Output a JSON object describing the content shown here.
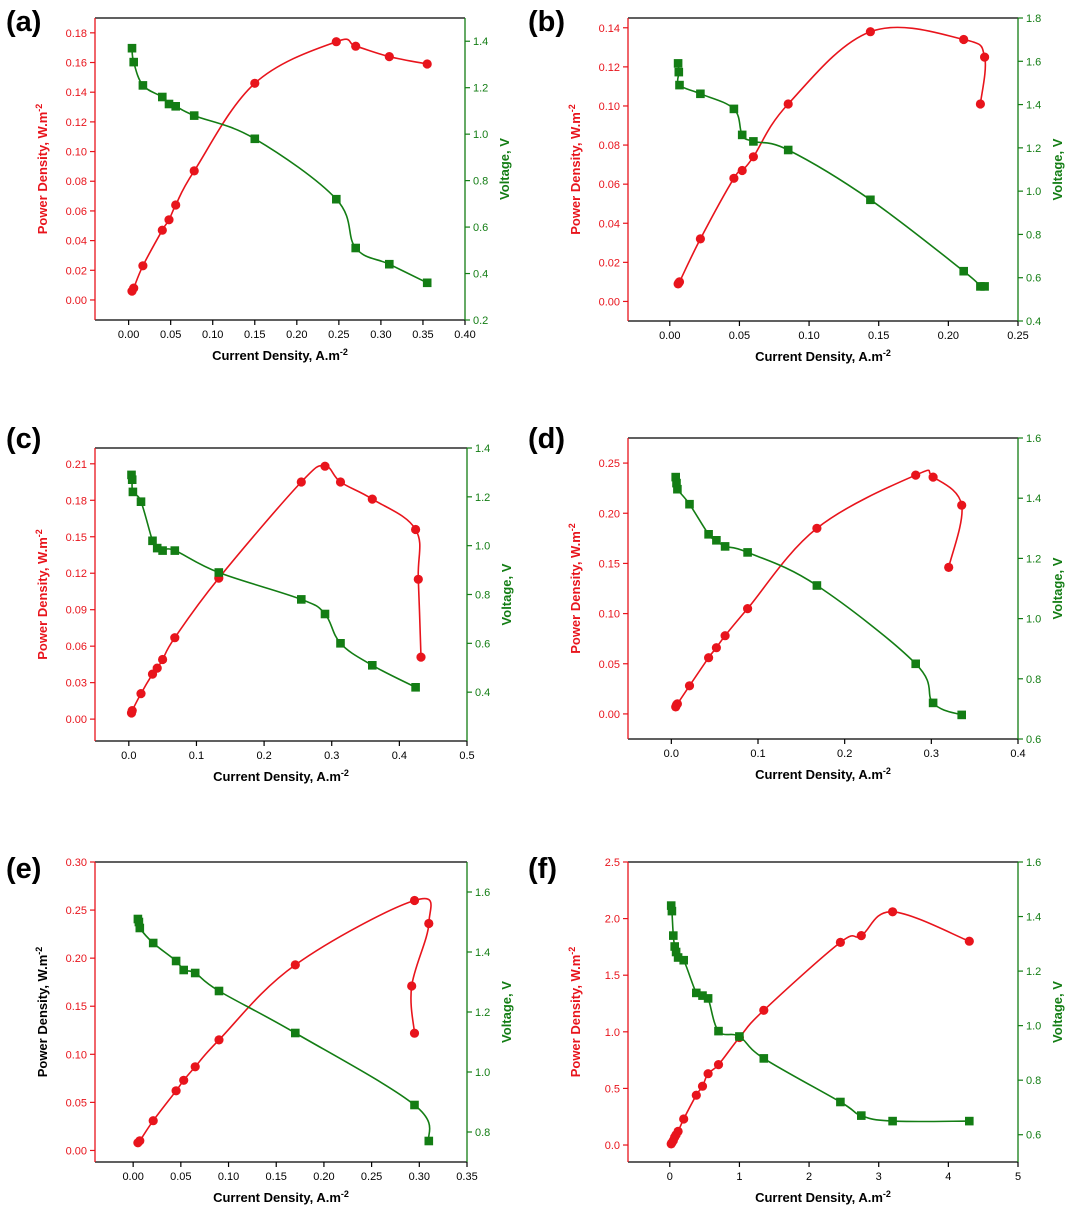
{
  "colors": {
    "power": "#e8141c",
    "voltage": "#137d14",
    "axis": "#000000"
  },
  "chart_data": [
    {
      "type": "line",
      "panel": "(a)",
      "xlabel": "Current Density, A.m",
      "ylabel_left": "Power Density, W.m",
      "ylabel_right": "Voltage, V",
      "left_label_color": "power",
      "xlim": [
        -0.04,
        0.4
      ],
      "ylim_left": [
        -0.0135,
        0.19
      ],
      "ylim_right": [
        0.2,
        1.5
      ],
      "xticks": [
        0.0,
        0.05,
        0.1,
        0.15,
        0.2,
        0.25,
        0.3,
        0.35,
        0.4
      ],
      "xtick_labels": [
        "0.00",
        "0.05",
        "0.10",
        "0.15",
        "0.20",
        "0.25",
        "0.30",
        "0.35",
        "0.40"
      ],
      "yticks_left": [
        0.0,
        0.02,
        0.04,
        0.06,
        0.08,
        0.1,
        0.12,
        0.14,
        0.16,
        0.18
      ],
      "ytick_labels_left": [
        "0.00",
        "0.02",
        "0.04",
        "0.06",
        "0.08",
        "0.10",
        "0.12",
        "0.14",
        "0.16",
        "0.18"
      ],
      "yticks_right": [
        0.2,
        0.4,
        0.6,
        0.8,
        1.0,
        1.2,
        1.4
      ],
      "ytick_labels_right": [
        "0.2",
        "0.4",
        "0.6",
        "0.8",
        "1.0",
        "1.2",
        "1.4"
      ],
      "series": [
        {
          "name": "Power Density",
          "axis": "left",
          "marker": "circle",
          "color": "power",
          "x": [
            0.004,
            0.006,
            0.017,
            0.04,
            0.048,
            0.056,
            0.078,
            0.15,
            0.247,
            0.27,
            0.31,
            0.355
          ],
          "y": [
            0.006,
            0.008,
            0.023,
            0.047,
            0.054,
            0.064,
            0.087,
            0.146,
            0.174,
            0.171,
            0.164,
            0.159
          ]
        },
        {
          "name": "Voltage",
          "axis": "right",
          "marker": "square",
          "color": "voltage",
          "x": [
            0.004,
            0.006,
            0.017,
            0.04,
            0.048,
            0.056,
            0.078,
            0.15,
            0.247,
            0.27,
            0.31,
            0.355
          ],
          "y": [
            1.37,
            1.31,
            1.21,
            1.16,
            1.13,
            1.12,
            1.08,
            0.98,
            0.72,
            0.51,
            0.44,
            0.36
          ]
        }
      ]
    },
    {
      "type": "line",
      "panel": "(b)",
      "xlabel": "Current Density, A.m",
      "ylabel_left": "Power Density, W.m",
      "ylabel_right": "Voltage, V",
      "left_label_color": "power",
      "xlim": [
        -0.03,
        0.25
      ],
      "ylim_left": [
        -0.01,
        0.145
      ],
      "ylim_right": [
        0.4,
        1.8
      ],
      "xticks": [
        0.0,
        0.05,
        0.1,
        0.15,
        0.2,
        0.25
      ],
      "xtick_labels": [
        "0.00",
        "0.05",
        "0.10",
        "0.15",
        "0.20",
        "0.25"
      ],
      "yticks_left": [
        0.0,
        0.02,
        0.04,
        0.06,
        0.08,
        0.1,
        0.12,
        0.14
      ],
      "ytick_labels_left": [
        "0.00",
        "0.02",
        "0.04",
        "0.06",
        "0.08",
        "0.10",
        "0.12",
        "0.14"
      ],
      "yticks_right": [
        0.4,
        0.6,
        0.8,
        1.0,
        1.2,
        1.4,
        1.6,
        1.8
      ],
      "ytick_labels_right": [
        "0.4",
        "0.6",
        "0.8",
        "1.0",
        "1.2",
        "1.4",
        "1.6",
        "1.8"
      ],
      "series": [
        {
          "name": "Power Density",
          "axis": "left",
          "marker": "circle",
          "color": "power",
          "x": [
            0.006,
            0.0065,
            0.007,
            0.022,
            0.046,
            0.052,
            0.06,
            0.085,
            0.144,
            0.211,
            0.226,
            0.223
          ],
          "y": [
            0.009,
            0.0095,
            0.01,
            0.032,
            0.063,
            0.067,
            0.074,
            0.101,
            0.138,
            0.134,
            0.125,
            0.101
          ]
        },
        {
          "name": "Voltage",
          "axis": "right",
          "marker": "square",
          "color": "voltage",
          "x": [
            0.006,
            0.0065,
            0.007,
            0.022,
            0.046,
            0.052,
            0.06,
            0.085,
            0.144,
            0.211,
            0.223,
            0.226
          ],
          "y": [
            1.59,
            1.55,
            1.49,
            1.45,
            1.38,
            1.26,
            1.23,
            1.19,
            0.96,
            0.63,
            0.56,
            0.56
          ]
        }
      ]
    },
    {
      "type": "line",
      "panel": "(c)",
      "xlabel": "Current Density, A.m",
      "ylabel_left": "Power Density, W.m",
      "ylabel_right": "Voltage, V",
      "left_label_color": "power",
      "xlim": [
        -0.05,
        0.5
      ],
      "ylim_left": [
        -0.018,
        0.223
      ],
      "ylim_right": [
        0.2,
        1.4
      ],
      "xticks": [
        0.0,
        0.1,
        0.2,
        0.3,
        0.4,
        0.5
      ],
      "xtick_labels": [
        "0.0",
        "0.1",
        "0.2",
        "0.3",
        "0.4",
        "0.5"
      ],
      "yticks_left": [
        0.0,
        0.03,
        0.06,
        0.09,
        0.12,
        0.15,
        0.18,
        0.21
      ],
      "ytick_labels_left": [
        "0.00",
        "0.03",
        "0.06",
        "0.09",
        "0.12",
        "0.15",
        "0.18",
        "0.21"
      ],
      "yticks_right": [
        0.4,
        0.6,
        0.8,
        1.0,
        1.2,
        1.4
      ],
      "ytick_labels_right": [
        "0.4",
        "0.6",
        "0.8",
        "1.0",
        "1.2",
        "1.4"
      ],
      "series": [
        {
          "name": "Power Density",
          "axis": "left",
          "marker": "circle",
          "color": "power",
          "x": [
            0.004,
            0.005,
            0.018,
            0.035,
            0.042,
            0.05,
            0.068,
            0.133,
            0.255,
            0.29,
            0.313,
            0.36,
            0.424,
            0.428,
            0.432
          ],
          "y": [
            0.005,
            0.007,
            0.021,
            0.037,
            0.042,
            0.049,
            0.067,
            0.116,
            0.195,
            0.208,
            0.195,
            0.181,
            0.156,
            0.115,
            0.051
          ]
        },
        {
          "name": "Voltage",
          "axis": "right",
          "marker": "square",
          "color": "voltage",
          "x": [
            0.004,
            0.005,
            0.006,
            0.018,
            0.035,
            0.042,
            0.05,
            0.068,
            0.133,
            0.255,
            0.29,
            0.313,
            0.36,
            0.424
          ],
          "y": [
            1.29,
            1.27,
            1.22,
            1.18,
            1.02,
            0.99,
            0.98,
            0.98,
            0.89,
            0.78,
            0.72,
            0.6,
            0.51,
            0.42
          ]
        }
      ]
    },
    {
      "type": "line",
      "panel": "(d)",
      "xlabel": "Current Density, A.m",
      "ylabel_left": "Power Density, W.m",
      "ylabel_right": "Voltage, V",
      "left_label_color": "power",
      "xlim": [
        -0.05,
        0.4
      ],
      "ylim_left": [
        -0.025,
        0.275
      ],
      "ylim_right": [
        0.6,
        1.6
      ],
      "xticks": [
        0.0,
        0.1,
        0.2,
        0.3,
        0.4
      ],
      "xtick_labels": [
        "0.0",
        "0.1",
        "0.2",
        "0.3",
        "0.4"
      ],
      "yticks_left": [
        0.0,
        0.05,
        0.1,
        0.15,
        0.2,
        0.25
      ],
      "ytick_labels_left": [
        "0.00",
        "0.05",
        "0.10",
        "0.15",
        "0.20",
        "0.25"
      ],
      "yticks_right": [
        0.6,
        0.8,
        1.0,
        1.2,
        1.4,
        1.6
      ],
      "ytick_labels_right": [
        "0.6",
        "0.8",
        "1.0",
        "1.2",
        "1.4",
        "1.6"
      ],
      "series": [
        {
          "name": "Power Density",
          "axis": "left",
          "marker": "circle",
          "color": "power",
          "x": [
            0.005,
            0.006,
            0.007,
            0.021,
            0.043,
            0.052,
            0.062,
            0.088,
            0.168,
            0.282,
            0.302,
            0.335,
            0.32
          ],
          "y": [
            0.007,
            0.009,
            0.01,
            0.028,
            0.056,
            0.066,
            0.078,
            0.105,
            0.185,
            0.238,
            0.236,
            0.208,
            0.146
          ]
        },
        {
          "name": "Voltage",
          "axis": "right",
          "marker": "square",
          "color": "voltage",
          "x": [
            0.005,
            0.006,
            0.007,
            0.021,
            0.043,
            0.052,
            0.062,
            0.088,
            0.168,
            0.282,
            0.302,
            0.335
          ],
          "y": [
            1.47,
            1.45,
            1.43,
            1.38,
            1.28,
            1.26,
            1.24,
            1.22,
            1.11,
            0.85,
            0.72,
            0.68
          ]
        }
      ]
    },
    {
      "type": "line",
      "panel": "(e)",
      "xlabel": "Current Density, A.m",
      "ylabel_left": "Power Density, W.m",
      "ylabel_right": "Voltage, V",
      "left_label_color": "axis",
      "xlim": [
        -0.04,
        0.35
      ],
      "ylim_left": [
        -0.012,
        0.3
      ],
      "ylim_right": [
        0.7,
        1.7
      ],
      "xticks": [
        0.0,
        0.05,
        0.1,
        0.15,
        0.2,
        0.25,
        0.3,
        0.35
      ],
      "xtick_labels": [
        "0.00",
        "0.05",
        "0.10",
        "0.15",
        "0.20",
        "0.25",
        "0.30",
        "0.35"
      ],
      "yticks_left": [
        0.0,
        0.05,
        0.1,
        0.15,
        0.2,
        0.25,
        0.3
      ],
      "ytick_labels_left": [
        "0.00",
        "0.05",
        "0.10",
        "0.15",
        "0.20",
        "0.25",
        "0.30"
      ],
      "yticks_right": [
        0.8,
        1.0,
        1.2,
        1.4,
        1.6
      ],
      "ytick_labels_right": [
        "0.8",
        "1.0",
        "1.2",
        "1.4",
        "1.6"
      ],
      "series": [
        {
          "name": "Power Density",
          "axis": "left",
          "marker": "circle",
          "color": "power",
          "x": [
            0.005,
            0.007,
            0.021,
            0.045,
            0.053,
            0.065,
            0.09,
            0.17,
            0.295,
            0.31,
            0.292,
            0.295
          ],
          "y": [
            0.008,
            0.01,
            0.031,
            0.062,
            0.073,
            0.087,
            0.115,
            0.193,
            0.26,
            0.236,
            0.171,
            0.122
          ]
        },
        {
          "name": "Voltage",
          "axis": "right",
          "marker": "square",
          "color": "voltage",
          "x": [
            0.005,
            0.006,
            0.007,
            0.021,
            0.045,
            0.053,
            0.065,
            0.09,
            0.17,
            0.295,
            0.31
          ],
          "y": [
            1.51,
            1.5,
            1.48,
            1.43,
            1.37,
            1.34,
            1.33,
            1.27,
            1.13,
            0.89,
            0.77
          ]
        }
      ]
    },
    {
      "type": "line",
      "panel": "(f)",
      "xlabel": "Current Density, A.m",
      "ylabel_left": "Power Density, W.m",
      "ylabel_right": "Voltage, V",
      "left_label_color": "power",
      "xlim": [
        -0.6,
        5.0
      ],
      "ylim_left": [
        -0.15,
        2.5
      ],
      "ylim_right": [
        0.5,
        1.6
      ],
      "xticks": [
        0,
        1,
        2,
        3,
        4,
        5
      ],
      "xtick_labels": [
        "0",
        "1",
        "2",
        "3",
        "4",
        "5"
      ],
      "yticks_left": [
        0.0,
        0.5,
        1.0,
        1.5,
        2.0,
        2.5
      ],
      "ytick_labels_left": [
        "0.0",
        "0.5",
        "1.0",
        "1.5",
        "2.0",
        "2.5"
      ],
      "yticks_right": [
        0.6,
        0.8,
        1.0,
        1.2,
        1.4,
        1.6
      ],
      "ytick_labels_right": [
        "0.6",
        "0.8",
        "1.0",
        "1.2",
        "1.4",
        "1.6"
      ],
      "series": [
        {
          "name": "Power Density",
          "axis": "left",
          "marker": "circle",
          "color": "power",
          "x": [
            0.02,
            0.03,
            0.05,
            0.07,
            0.09,
            0.12,
            0.2,
            0.38,
            0.47,
            0.55,
            0.7,
            1.0,
            1.35,
            2.45,
            2.75,
            3.2,
            4.3
          ],
          "y": [
            0.01,
            0.02,
            0.04,
            0.07,
            0.09,
            0.12,
            0.23,
            0.44,
            0.52,
            0.63,
            0.71,
            0.95,
            1.19,
            1.79,
            1.85,
            2.06,
            1.8
          ]
        },
        {
          "name": "Voltage",
          "axis": "right",
          "marker": "square",
          "color": "voltage",
          "x": [
            0.02,
            0.03,
            0.05,
            0.07,
            0.09,
            0.12,
            0.2,
            0.38,
            0.47,
            0.55,
            0.7,
            1.0,
            1.35,
            2.45,
            2.75,
            3.2,
            4.3
          ],
          "y": [
            1.44,
            1.42,
            1.33,
            1.29,
            1.27,
            1.25,
            1.24,
            1.12,
            1.11,
            1.1,
            0.98,
            0.96,
            0.88,
            0.72,
            0.67,
            0.65,
            0.65
          ]
        }
      ]
    }
  ]
}
